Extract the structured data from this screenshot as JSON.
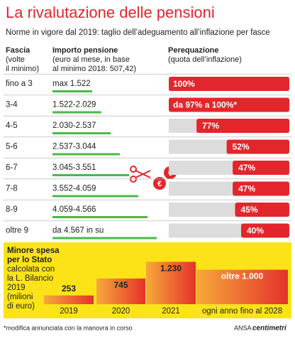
{
  "header": {
    "title": "La rivalutazione delle pensioni",
    "subtitle": "Norme in vigore dal 2019: taglio dell’adeguamento all’inflazione per fasce"
  },
  "table": {
    "columns": [
      [
        "Fascia",
        "(volte",
        "il minimo)"
      ],
      [
        "Importo pensione",
        "(euro al mese, in base",
        "al minimo 2018: 507,42)"
      ],
      [
        "Perequazione",
        "(quota dell’inflazione)"
      ]
    ],
    "rows": [
      {
        "fascia": "fino a 3",
        "importo": "max 1.522",
        "perequazione": 100,
        "perequazione_label": "100%"
      },
      {
        "fascia": "3-4",
        "importo": "1.522-2.029",
        "perequazione": 100,
        "perequazione_label": "da 97% a 100%*"
      },
      {
        "fascia": "4-5",
        "importo": "2.030-2.537",
        "perequazione": 77,
        "perequazione_label": "77%"
      },
      {
        "fascia": "5-6",
        "importo": "2.537-3.044",
        "perequazione": 52,
        "perequazione_label": "52%"
      },
      {
        "fascia": "6-7",
        "importo": "3.045-3.551",
        "perequazione": 47,
        "perequazione_label": "47%"
      },
      {
        "fascia": "7-8",
        "importo": "3.552-4.059",
        "perequazione": 47,
        "perequazione_label": "47%"
      },
      {
        "fascia": "8-9",
        "importo": "4.059-4.566",
        "perequazione": 45,
        "perequazione_label": "45%"
      },
      {
        "fascia": "oltre 9",
        "importo": "da 4.567 in su",
        "perequazione": 40,
        "perequazione_label": "40%"
      }
    ]
  },
  "spesa": {
    "title": [
      "Minore spesa",
      "per lo Stato"
    ],
    "description": [
      "calcolata con",
      "la L. Bilancio",
      "2019",
      "(milioni",
      "di euro)"
    ],
    "categories": [
      "2019",
      "2020",
      "2021",
      "ogni anno fino al 2028"
    ],
    "values": [
      253,
      745,
      1230,
      1000
    ],
    "value_labels": [
      "253",
      "745",
      "1.230",
      "oltre 1.000"
    ]
  },
  "footnote": "*modifica annunciata con la manovra in corso",
  "credit": [
    "ANSA",
    "centimetri"
  ]
}
